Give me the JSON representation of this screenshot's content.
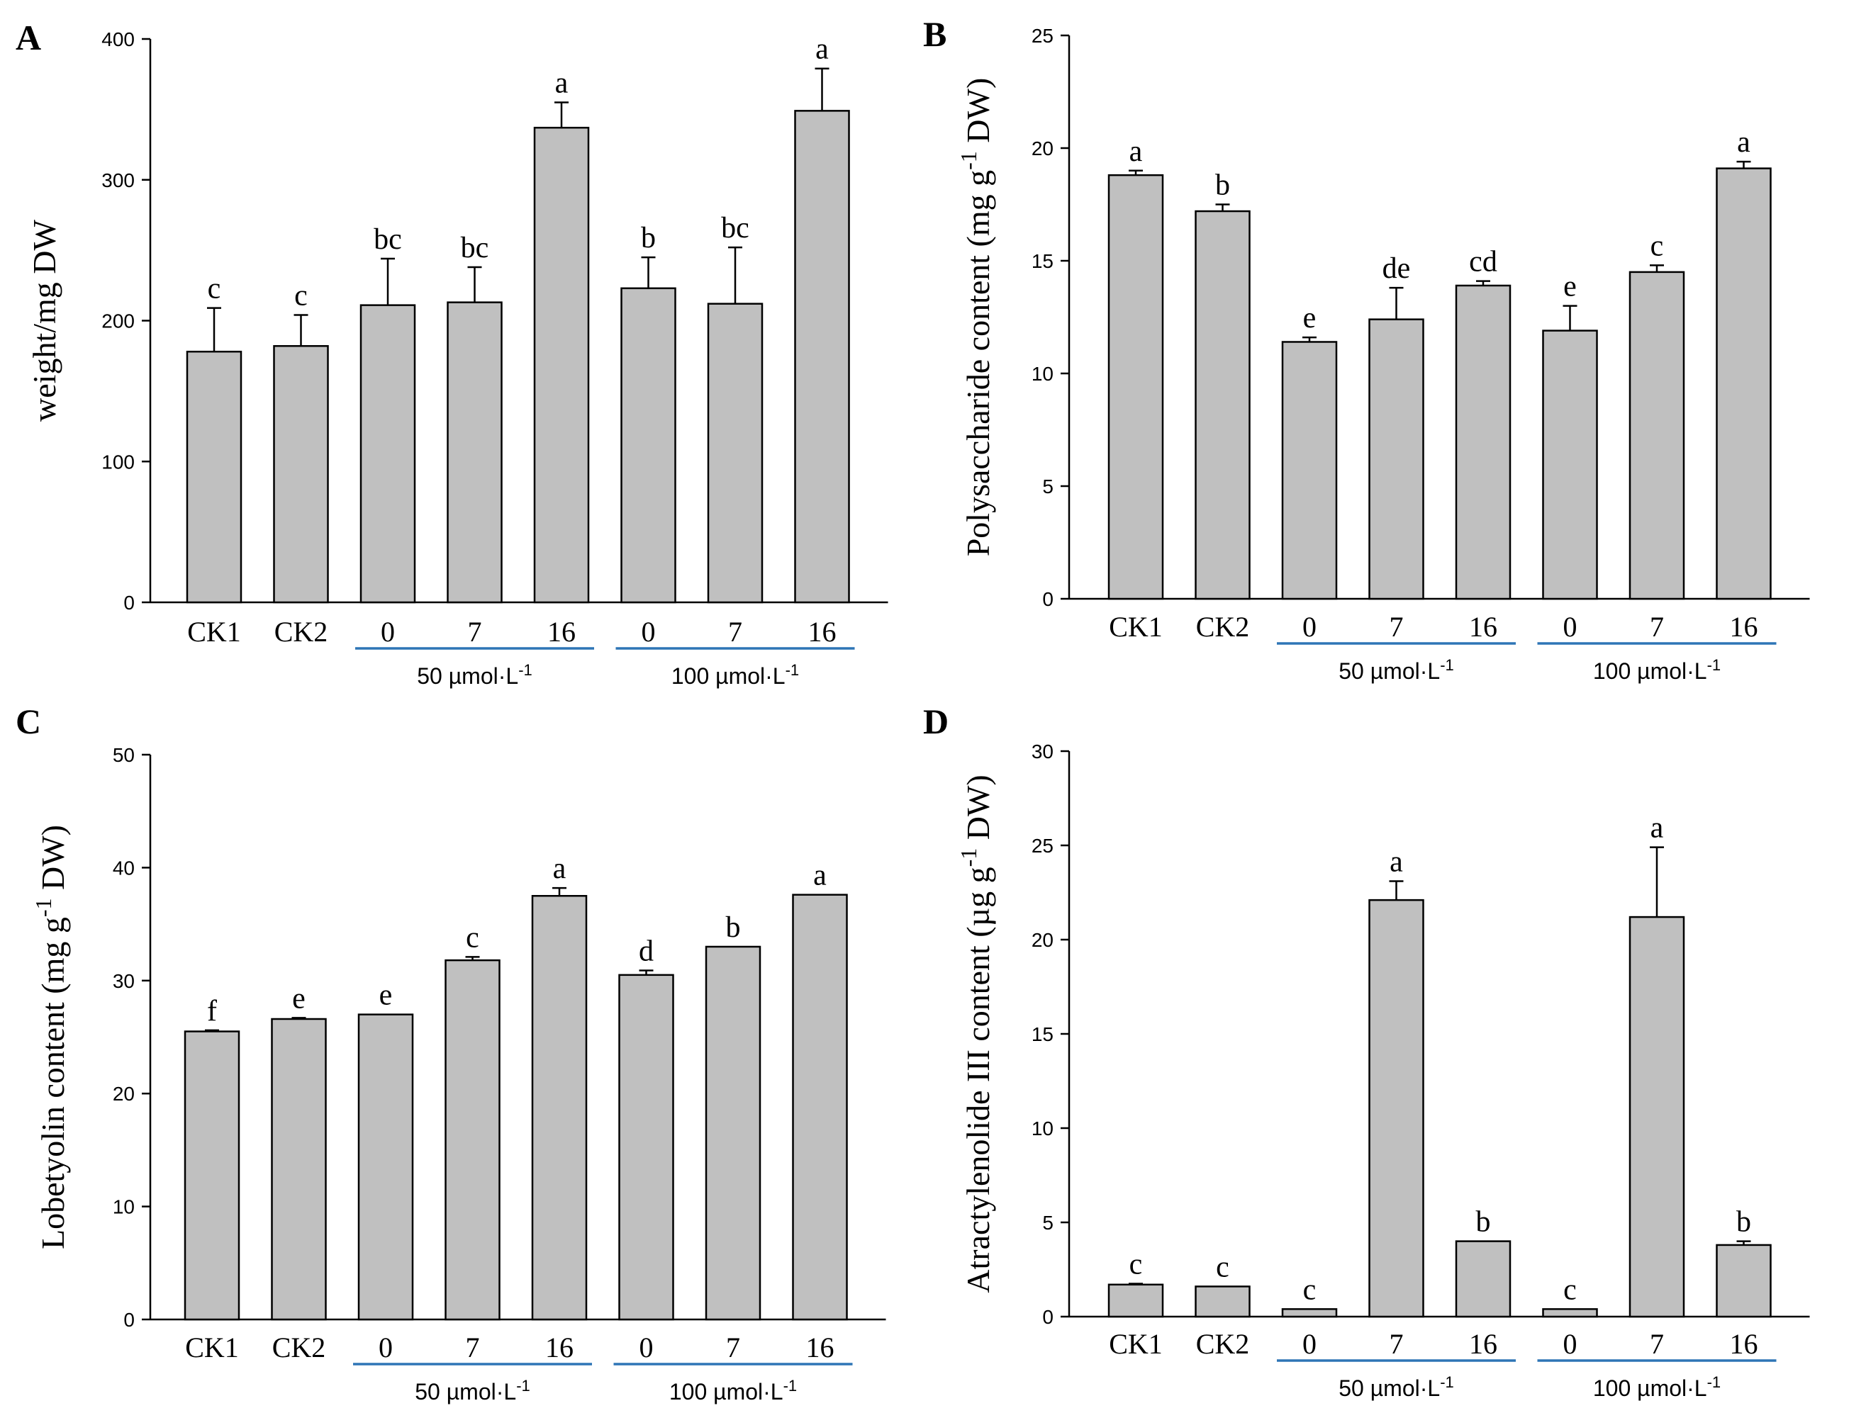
{
  "chart_data": [
    {
      "type": "bar",
      "panel": "A",
      "ylabel": "weight/mg DW",
      "ylim": [
        0,
        400
      ],
      "yticks": [
        "0",
        "100",
        "200",
        "300",
        "400"
      ],
      "categories": [
        "CK1",
        "CK2",
        "0",
        "7",
        "16",
        "0",
        "7",
        "16"
      ],
      "values": [
        178,
        182,
        211,
        213,
        337,
        223,
        212,
        349
      ],
      "errors": [
        31,
        22,
        33,
        25,
        18,
        22,
        40,
        30
      ],
      "letters": [
        "c",
        "c",
        "bc",
        "bc",
        "a",
        "b",
        "bc",
        "a"
      ],
      "groups": [
        {
          "label": "50 µmol·L",
          "sup": "-1",
          "from": 2,
          "to": 4
        },
        {
          "label": "100 µmol·L",
          "sup": "-1",
          "from": 5,
          "to": 7
        }
      ]
    },
    {
      "type": "bar",
      "panel": "B",
      "ylabel": "Polysaccharide content (mg g",
      "ylabel_sup": "-1",
      "ylabel_end": " DW)",
      "ylim": [
        0,
        25
      ],
      "yticks": [
        "0",
        "5",
        "10",
        "15",
        "20",
        "25"
      ],
      "categories": [
        "CK1",
        "CK2",
        "0",
        "7",
        "16",
        "0",
        "7",
        "16"
      ],
      "values": [
        18.8,
        17.2,
        11.4,
        12.4,
        13.9,
        11.9,
        14.5,
        19.1
      ],
      "errors": [
        0.2,
        0.3,
        0.2,
        1.4,
        0.2,
        1.1,
        0.3,
        0.3
      ],
      "letters": [
        "a",
        "b",
        "e",
        "de",
        "cd",
        "e",
        "c",
        "a"
      ],
      "groups": [
        {
          "label": "50 µmol·L",
          "sup": "-1",
          "from": 2,
          "to": 4
        },
        {
          "label": "100 µmol·L",
          "sup": "-1",
          "from": 5,
          "to": 7
        }
      ]
    },
    {
      "type": "bar",
      "panel": "C",
      "ylabel": "Lobetyolin content (mg g",
      "ylabel_sup": "-1",
      "ylabel_end": " DW)",
      "ylim": [
        0,
        50
      ],
      "yticks": [
        "0",
        "10",
        "20",
        "30",
        "40",
        "50"
      ],
      "categories": [
        "CK1",
        "CK2",
        "0",
        "7",
        "16",
        "0",
        "7",
        "16"
      ],
      "values": [
        25.5,
        26.6,
        27.0,
        31.8,
        37.5,
        30.5,
        33.0,
        37.6
      ],
      "errors": [
        0.1,
        0.1,
        0.0,
        0.3,
        0.7,
        0.4,
        0.0,
        0.0
      ],
      "letters": [
        "f",
        "e",
        "e",
        "c",
        "a",
        "d",
        "b",
        "a"
      ],
      "groups": [
        {
          "label": "50 µmol·L",
          "sup": "-1",
          "from": 2,
          "to": 4
        },
        {
          "label": "100 µmol·L",
          "sup": "-1",
          "from": 5,
          "to": 7
        }
      ]
    },
    {
      "type": "bar",
      "panel": "D",
      "ylabel": "Atractylenolide III content (µg g",
      "ylabel_sup": "-1",
      "ylabel_end": " DW)",
      "ylim": [
        0,
        30
      ],
      "yticks": [
        "0",
        "5",
        "10",
        "15",
        "20",
        "25",
        "30"
      ],
      "categories": [
        "CK1",
        "CK2",
        "0",
        "7",
        "16",
        "0",
        "7",
        "16"
      ],
      "values": [
        1.7,
        1.6,
        0.4,
        22.1,
        4.0,
        0.4,
        21.2,
        3.8
      ],
      "errors": [
        0.05,
        0.0,
        0.0,
        1.0,
        0.0,
        0.0,
        3.7,
        0.2
      ],
      "letters": [
        "c",
        "c",
        "c",
        "a",
        "b",
        "c",
        "a",
        "b"
      ],
      "groups": [
        {
          "label": "50 µmol·L",
          "sup": "-1",
          "from": 2,
          "to": 4
        },
        {
          "label": "100 µmol·L",
          "sup": "-1",
          "from": 5,
          "to": 7
        }
      ]
    }
  ]
}
